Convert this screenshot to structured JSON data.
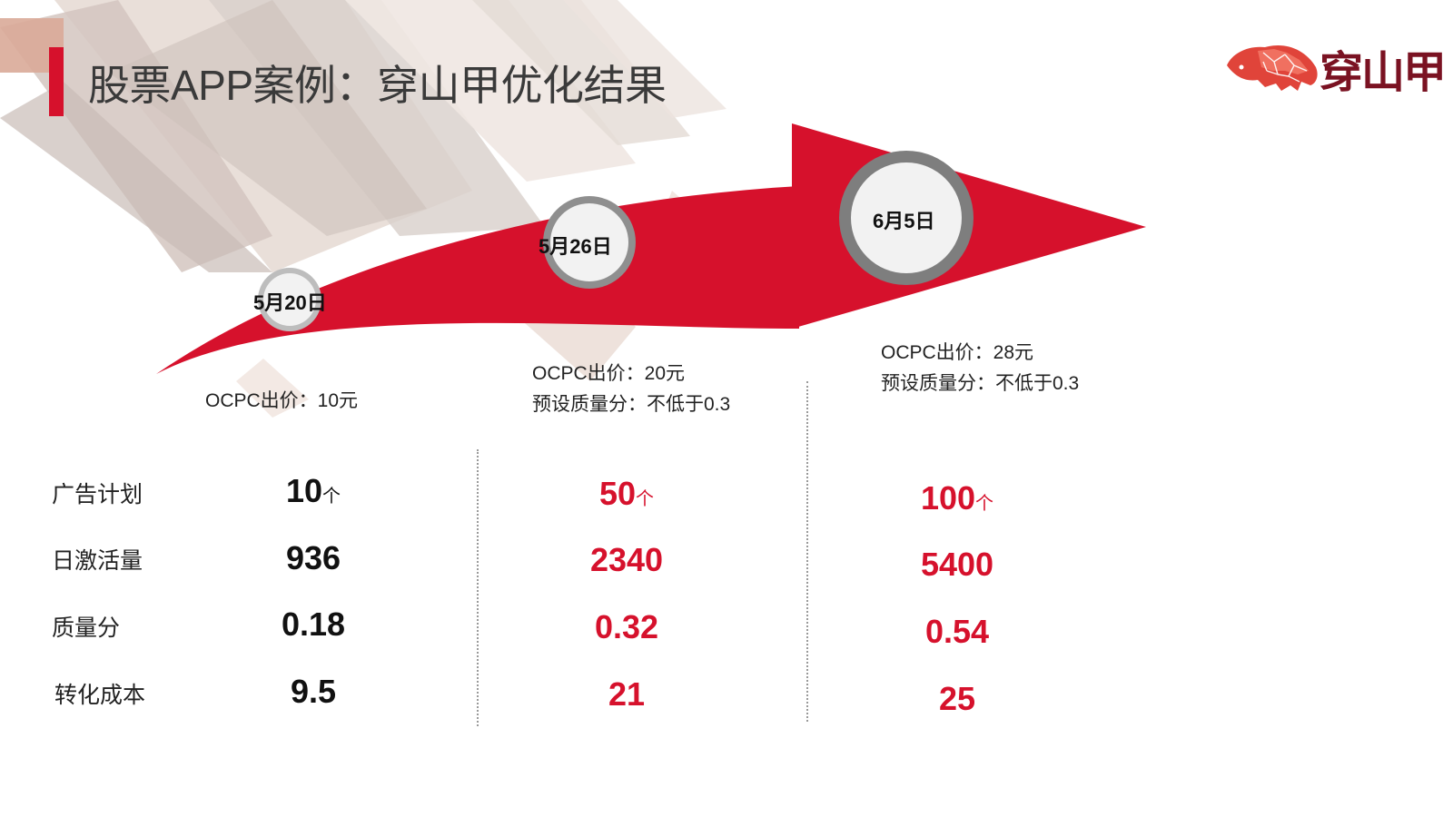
{
  "title": "股票APP案例：穿山甲优化结果",
  "logo": {
    "text": "穿山甲",
    "icon": "pangolin-icon"
  },
  "colors": {
    "accent": "#d6112c",
    "title_text": "#3a3a3a"
  },
  "milestones": [
    {
      "date": "5月20日",
      "bid": "OCPC出价：10元",
      "quality_preset": ""
    },
    {
      "date": "5月26日",
      "bid": "OCPC出价：20元",
      "quality_preset": "预设质量分：不低于0.3"
    },
    {
      "date": "6月5日",
      "bid": "OCPC出价：28元",
      "quality_preset": "预设质量分：不低于0.3"
    }
  ],
  "metrics": {
    "labels": [
      "广告计划",
      "日激活量",
      "质量分",
      "转化成本"
    ],
    "unit": "个",
    "columns": [
      {
        "plans": "10",
        "activations": "936",
        "quality": "0.18",
        "cost": "9.5"
      },
      {
        "plans": "50",
        "activations": "2340",
        "quality": "0.32",
        "cost": "21"
      },
      {
        "plans": "100",
        "activations": "5400",
        "quality": "0.54",
        "cost": "25"
      }
    ]
  }
}
